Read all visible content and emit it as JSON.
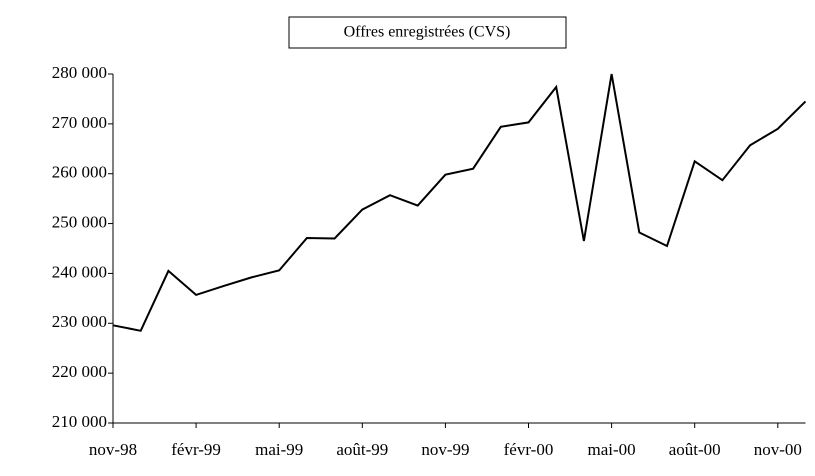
{
  "chart_data": {
    "type": "line",
    "title": "Offres enregistrées (CVS)",
    "categories": [
      "nov-98",
      null,
      null,
      "févr-99",
      null,
      null,
      "mai-99",
      null,
      null,
      "août-99",
      null,
      null,
      "nov-99",
      null,
      null,
      "févr-00",
      null,
      null,
      "mai-00",
      null,
      null,
      "août-00",
      null,
      null,
      "nov-00",
      null
    ],
    "series": [
      {
        "name": "Offres enregistrées (CVS)",
        "color": "#000000",
        "values": [
          229600,
          228500,
          240500,
          235700,
          237500,
          239200,
          240600,
          247100,
          247000,
          252800,
          255700,
          253600,
          259800,
          261000,
          269400,
          270300,
          277400,
          246500,
          280000,
          248200,
          245500,
          262500,
          258700,
          265700,
          269000,
          274500
        ]
      }
    ],
    "ylim": [
      210000,
      280000
    ],
    "yticks": [
      {
        "value": 210000,
        "label": "210 000"
      },
      {
        "value": 220000,
        "label": "220 000"
      },
      {
        "value": 230000,
        "label": "230 000"
      },
      {
        "value": 240000,
        "label": "240 000"
      },
      {
        "value": 250000,
        "label": "250 000"
      },
      {
        "value": 260000,
        "label": "260 000"
      },
      {
        "value": 270000,
        "label": "270 000"
      },
      {
        "value": 280000,
        "label": "280 000"
      }
    ],
    "grid": false
  }
}
